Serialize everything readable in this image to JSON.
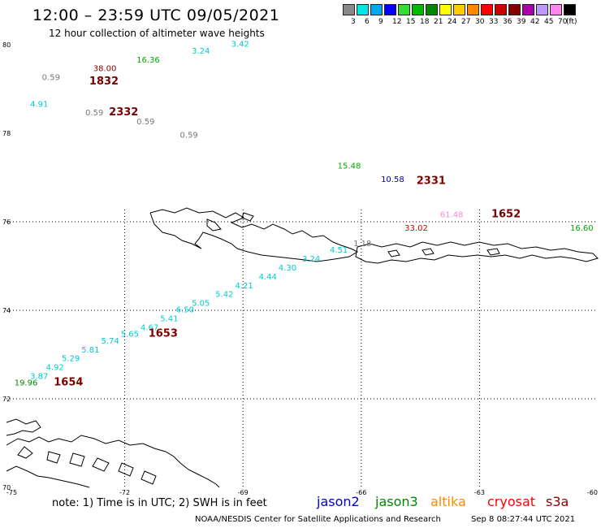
{
  "header": {
    "title": "12:00 – 23:59 UTC 09/05/2021",
    "subtitle": "12 hour collection of altimeter wave heights"
  },
  "scale": {
    "unit": "(ft)",
    "items": [
      {
        "label": "3",
        "color": "#888888"
      },
      {
        "label": "6",
        "color": "#00e6e6"
      },
      {
        "label": "9",
        "color": "#00aaee"
      },
      {
        "label": "12",
        "color": "#0000ff"
      },
      {
        "label": "15",
        "color": "#33dd33"
      },
      {
        "label": "18",
        "color": "#00bb00"
      },
      {
        "label": "21",
        "color": "#008800"
      },
      {
        "label": "24",
        "color": "#ffff00"
      },
      {
        "label": "27",
        "color": "#ffcc00"
      },
      {
        "label": "30",
        "color": "#ff8800"
      },
      {
        "label": "33",
        "color": "#ff0000"
      },
      {
        "label": "36",
        "color": "#cc0000"
      },
      {
        "label": "39",
        "color": "#880000"
      },
      {
        "label": "42",
        "color": "#aa00aa"
      },
      {
        "label": "45",
        "color": "#bb99ff"
      },
      {
        "label": "70",
        "color": "#ff88ee"
      },
      {
        "label": "",
        "color": "#000000"
      }
    ]
  },
  "axes": {
    "lat_labels": [
      "80",
      "78",
      "76",
      "74",
      "72",
      "70"
    ],
    "lon_labels": [
      "-75",
      "-72",
      "-69",
      "-66",
      "-63",
      "-60"
    ],
    "lat_values": [
      80,
      78,
      76,
      74,
      72,
      70
    ],
    "lon_values": [
      -75,
      -72,
      -69,
      -66,
      -63,
      -60
    ]
  },
  "observations": [
    {
      "text": "38.00",
      "color": "#880000",
      "lon": -72.8,
      "lat": 79.4
    },
    {
      "text": "16.36",
      "color": "#00aa00",
      "lon": -71.7,
      "lat": 79.6
    },
    {
      "text": "3.24",
      "color": "#00cccc",
      "lon": -70.3,
      "lat": 79.8
    },
    {
      "text": "3.42",
      "color": "#00cccc",
      "lon": -69.3,
      "lat": 79.95
    },
    {
      "text": "0.59",
      "color": "#777777",
      "lon": -74.1,
      "lat": 79.2
    },
    {
      "text": "4.91",
      "color": "#00cccc",
      "lon": -74.4,
      "lat": 78.6
    },
    {
      "text": "0.59",
      "color": "#777777",
      "lon": -73.0,
      "lat": 78.4
    },
    {
      "text": "0.59",
      "color": "#777777",
      "lon": -71.7,
      "lat": 78.2
    },
    {
      "text": "0.59",
      "color": "#777777",
      "lon": -70.6,
      "lat": 77.9
    },
    {
      "text": "15.48",
      "color": "#00aa00",
      "lon": -66.6,
      "lat": 77.2
    },
    {
      "text": "10.58",
      "color": "#0000aa",
      "lon": -65.5,
      "lat": 76.9
    },
    {
      "text": "61.48",
      "color": "#ff88dd",
      "lon": -64.0,
      "lat": 76.1
    },
    {
      "text": "33.02",
      "color": "#cc0000",
      "lon": -64.9,
      "lat": 75.8
    },
    {
      "text": "16.60",
      "color": "#00aa00",
      "lon": -60.7,
      "lat": 75.8
    },
    {
      "text": "1.18",
      "color": "#777777",
      "lon": -66.2,
      "lat": 75.45
    },
    {
      "text": "4.51",
      "color": "#00cccc",
      "lon": -66.8,
      "lat": 75.3
    },
    {
      "text": "3.24",
      "color": "#00cccc",
      "lon": -67.5,
      "lat": 75.1
    },
    {
      "text": "4.30",
      "color": "#00cccc",
      "lon": -68.1,
      "lat": 74.9
    },
    {
      "text": "4.44",
      "color": "#00cccc",
      "lon": -68.6,
      "lat": 74.7
    },
    {
      "text": "4.21",
      "color": "#00cccc",
      "lon": -69.2,
      "lat": 74.5
    },
    {
      "text": "5.42",
      "color": "#00cccc",
      "lon": -69.7,
      "lat": 74.3
    },
    {
      "text": "5.05",
      "color": "#00cccc",
      "lon": -70.3,
      "lat": 74.1
    },
    {
      "text": "6.50",
      "color": "#00cccc",
      "lon": -70.7,
      "lat": 73.95
    },
    {
      "text": "5.41",
      "color": "#00cccc",
      "lon": -71.1,
      "lat": 73.75
    },
    {
      "text": "4.67",
      "color": "#00cccc",
      "lon": -71.6,
      "lat": 73.55
    },
    {
      "text": "5.65",
      "color": "#00cccc",
      "lon": -72.1,
      "lat": 73.4
    },
    {
      "text": "5.74",
      "color": "#00cccc",
      "lon": -72.6,
      "lat": 73.25
    },
    {
      "text": "5.81",
      "color": "#00cccc",
      "lon": -73.1,
      "lat": 73.05
    },
    {
      "text": "5.29",
      "color": "#00cccc",
      "lon": -73.6,
      "lat": 72.85
    },
    {
      "text": "4.92",
      "color": "#00cccc",
      "lon": -74.0,
      "lat": 72.65
    },
    {
      "text": "3.87",
      "color": "#00cccc",
      "lon": -74.4,
      "lat": 72.45
    },
    {
      "text": "19.96",
      "color": "#008800",
      "lon": -74.8,
      "lat": 72.3
    }
  ],
  "passes": [
    {
      "text": "1832",
      "lon": -72.9,
      "lat": 79.1
    },
    {
      "text": "2332",
      "lon": -72.4,
      "lat": 78.4
    },
    {
      "text": "2331",
      "lon": -64.6,
      "lat": 76.85
    },
    {
      "text": "1652",
      "lon": -62.7,
      "lat": 76.1
    },
    {
      "text": "1653",
      "lon": -71.4,
      "lat": 73.4
    },
    {
      "text": "1654",
      "lon": -73.8,
      "lat": 72.3
    }
  ],
  "footer": {
    "note": "note: 1) Time is in UTC; 2) SWH is in feet",
    "missions": [
      {
        "name": "jason2",
        "color": "#0000cc"
      },
      {
        "name": "jason3",
        "color": "#008800"
      },
      {
        "name": "altika",
        "color": "#ff8800"
      },
      {
        "name": "cryosat",
        "color": "#ff0000"
      },
      {
        "name": "s3a",
        "color": "#880000"
      }
    ],
    "credit": "NOAA/NESDIS Center for Satellite Applications and Research",
    "timestamp": "Sep  8 08:27:44 UTC 2021"
  }
}
